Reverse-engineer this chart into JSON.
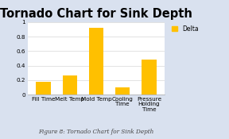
{
  "title": "Tornado Chart for Sink Depth",
  "categories": [
    "Fill Time",
    "Melt Temp",
    "Mold Temp",
    "Cooling\nTime",
    "Pressure\nHolding\nTime"
  ],
  "values": [
    0.18,
    0.26,
    0.92,
    0.1,
    0.48
  ],
  "bar_color": "#FFC000",
  "legend_label": "Delta",
  "ylim": [
    0,
    1.0
  ],
  "yticks": [
    0,
    0.2,
    0.4,
    0.6,
    0.8,
    1
  ],
  "ytick_labels": [
    "0",
    "0.2",
    "0.4",
    "0.6",
    "0.8",
    "1"
  ],
  "background_color": "#d9e1ef",
  "plot_bg_color": "#ffffff",
  "title_fontsize": 10.5,
  "tick_fontsize": 5.2,
  "legend_fontsize": 5.5,
  "caption": "Figure 8: Tornado Chart for Sink Depth",
  "caption_fontsize": 5.2
}
